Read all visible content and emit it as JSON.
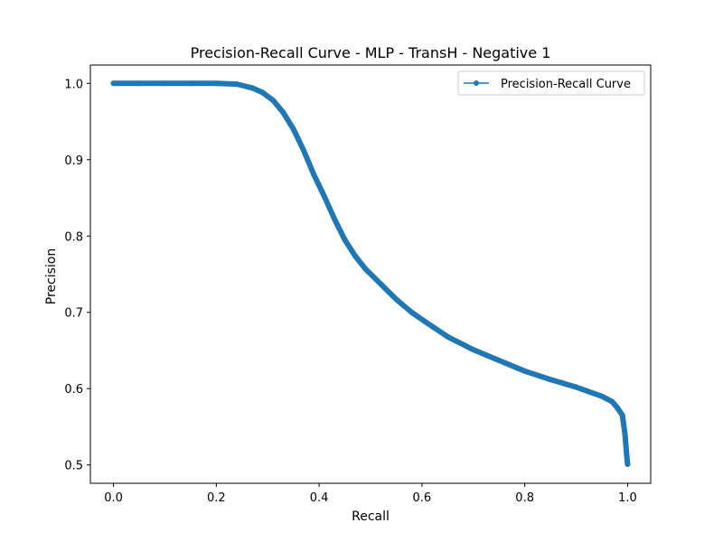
{
  "chart_data": {
    "type": "line",
    "title": "Precision-Recall Curve - MLP - TransH - Negative 1",
    "xlabel": "Recall",
    "ylabel": "Precision",
    "xlim": [
      -0.045,
      1.045
    ],
    "ylim": [
      0.476,
      1.024
    ],
    "xticks": [
      0.0,
      0.2,
      0.4,
      0.6,
      0.8,
      1.0
    ],
    "xtick_labels": [
      "0.0",
      "0.2",
      "0.4",
      "0.6",
      "0.8",
      "1.0"
    ],
    "yticks": [
      0.5,
      0.6,
      0.7,
      0.8,
      0.9,
      1.0
    ],
    "ytick_labels": [
      "0.5",
      "0.6",
      "0.7",
      "0.8",
      "0.9",
      "1.0"
    ],
    "legend": {
      "label": "Precision-Recall Curve",
      "position": "upper right"
    },
    "color": "#1f77b4",
    "series": [
      {
        "name": "Precision-Recall Curve",
        "marker": "dot",
        "x": [
          0.0,
          0.05,
          0.1,
          0.15,
          0.2,
          0.24,
          0.27,
          0.29,
          0.31,
          0.33,
          0.35,
          0.37,
          0.39,
          0.41,
          0.43,
          0.45,
          0.47,
          0.49,
          0.52,
          0.55,
          0.58,
          0.61,
          0.65,
          0.7,
          0.75,
          0.8,
          0.85,
          0.9,
          0.95,
          0.97,
          0.98,
          0.99,
          0.995,
          0.998,
          1.0
        ],
        "y": [
          1.0,
          1.0,
          1.0,
          1.0,
          1.0,
          0.999,
          0.994,
          0.988,
          0.978,
          0.962,
          0.94,
          0.912,
          0.88,
          0.852,
          0.822,
          0.795,
          0.774,
          0.757,
          0.737,
          0.717,
          0.7,
          0.686,
          0.668,
          0.651,
          0.637,
          0.623,
          0.612,
          0.602,
          0.59,
          0.583,
          0.575,
          0.565,
          0.54,
          0.515,
          0.501
        ]
      }
    ]
  }
}
